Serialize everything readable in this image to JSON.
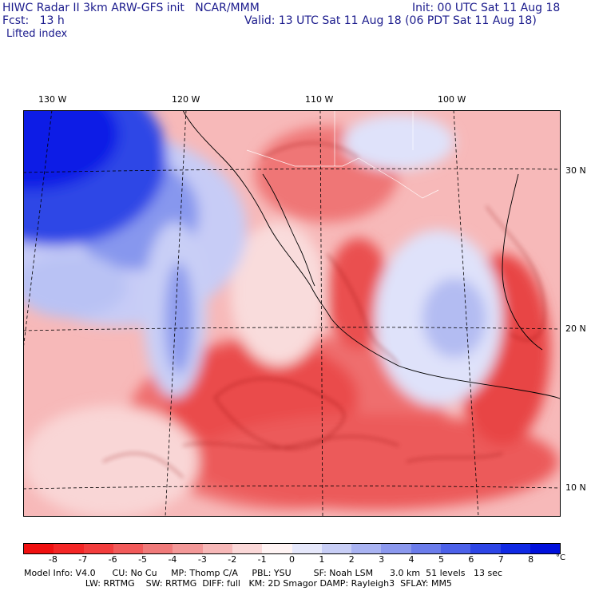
{
  "header": {
    "left_line1": "HIWC Radar II 3km ARW-GFS init   NCAR/MMM",
    "left_line2": "Fcst:   13 h",
    "right_line1": "Init: 00 UTC Sat 11 Aug 18",
    "right_line2": "Valid: 13 UTC Sat 11 Aug 18 (06 PDT Sat 11 Aug 18)",
    "field": "Lifted index"
  },
  "map": {
    "lon_labels": [
      "130 W",
      "120 W",
      "110 W",
      "100 W"
    ],
    "lat_labels": [
      "30 N",
      "20 N",
      "10 N"
    ],
    "colors": {
      "strong_positive": "#0a1ee6",
      "mid_positive": "#7d8fef",
      "weak_positive": "#dfe2fa",
      "neutral": "#fdf0ef",
      "weak_negative": "#f5b2b2",
      "mid_negative": "#ef7070",
      "strong_negative": "#e82c2c",
      "contour": "#8b0000",
      "grid": "#000000"
    }
  },
  "colorbar": {
    "ticks": [
      "-8",
      "-7",
      "-6",
      "-5",
      "-4",
      "-3",
      "-2",
      "-1",
      "0",
      "1",
      "2",
      "3",
      "4",
      "5",
      "6",
      "7",
      "8"
    ],
    "unit": "°C",
    "colors": [
      "#f01010",
      "#f42626",
      "#f33d3d",
      "#f25a5a",
      "#f07a7a",
      "#f39898",
      "#f7b8b8",
      "#fbd8d8",
      "#fff4f4",
      "#e6e8fb",
      "#c8cef6",
      "#a9b3f2",
      "#8b98ee",
      "#6b7ceb",
      "#4c61e9",
      "#2d45e6",
      "#1029e4",
      "#0010dc"
    ]
  },
  "footer": {
    "line1": "Model Info: V4.0      CU: No Cu     MP: Thomp C/A     PBL: YSU        SF: Noah LSM      3.0 km  51 levels   13 sec",
    "line2": "                      LW: RRTMG    SW: RRTMG  DIFF: full   KM: 2D Smagor DAMP: Rayleigh3  SFLAY: MM5"
  }
}
